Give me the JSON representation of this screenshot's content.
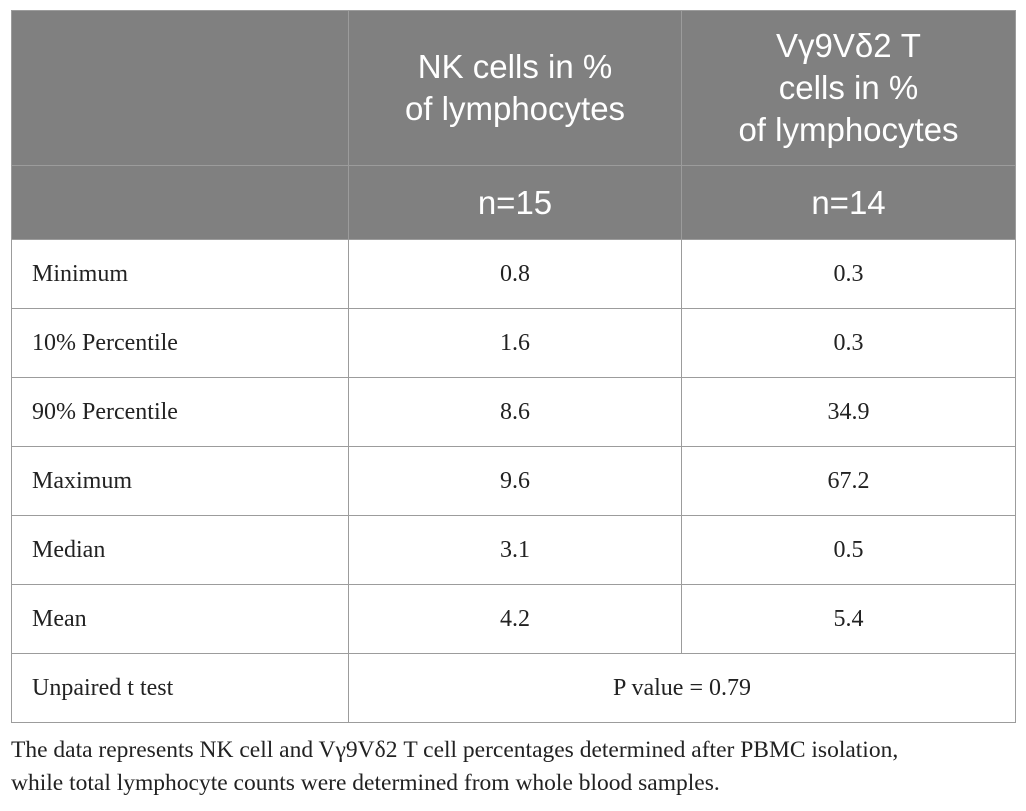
{
  "table": {
    "header": {
      "col1_line1": "NK cells in %",
      "col1_line2": "of lymphocytes",
      "col2_line1": "Vγ9Vδ2 T",
      "col2_line2": "cells in %",
      "col2_line3": "of lymphocytes",
      "col1_n": "n=15",
      "col2_n": "n=14"
    },
    "rows": [
      {
        "label": "Minimum",
        "nk": "0.8",
        "vg": "0.3"
      },
      {
        "label": "10% Percentile",
        "nk": "1.6",
        "vg": "0.3"
      },
      {
        "label": "90% Percentile",
        "nk": "8.6",
        "vg": "34.9"
      },
      {
        "label": "Maximum",
        "nk": "9.6",
        "vg": "67.2"
      },
      {
        "label": "Median",
        "nk": "3.1",
        "vg": "0.5"
      },
      {
        "label": "Mean",
        "nk": "4.2",
        "vg": "5.4"
      }
    ],
    "test_row": {
      "label": "Unpaired t test",
      "value": "P value = 0.79"
    }
  },
  "footnote": {
    "line1": "The data represents NK cell and Vγ9Vδ2 T cell percentages determined after PBMC isolation,",
    "line2": "while total lymphocyte counts were determined from whole blood samples."
  }
}
